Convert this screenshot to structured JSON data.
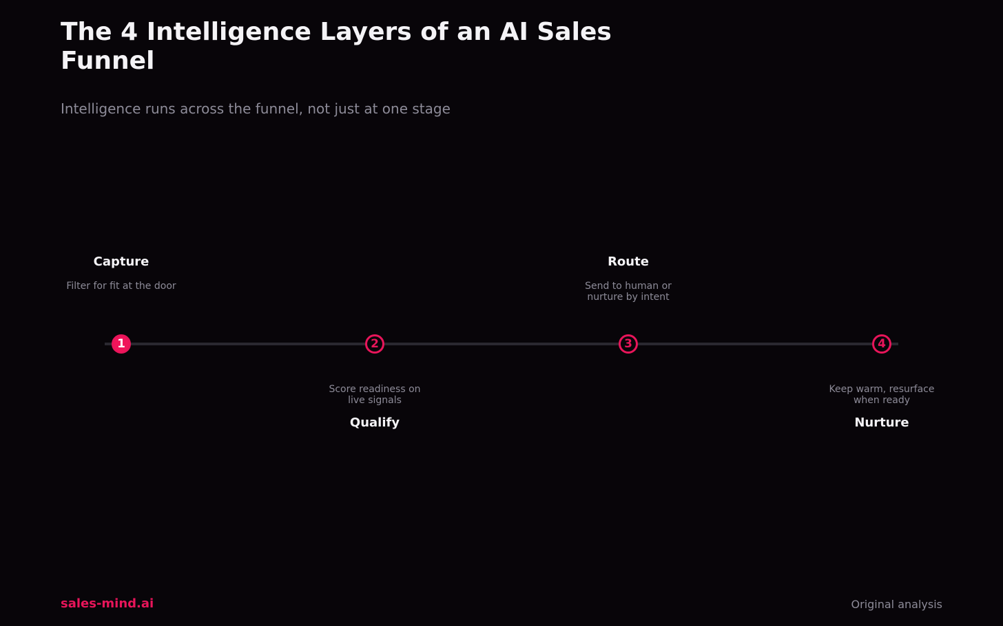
{
  "header": {
    "title": "The 4 Intelligence Layers of an AI Sales Funnel",
    "subtitle": "Intelligence runs across the funnel, not just at one stage"
  },
  "steps": [
    {
      "number": "1",
      "title": "Capture",
      "description": "Filter for fit at the door"
    },
    {
      "number": "2",
      "title": "Qualify",
      "description": "Score readiness on live signals"
    },
    {
      "number": "3",
      "title": "Route",
      "description": "Send to human or nurture by intent"
    },
    {
      "number": "4",
      "title": "Nurture",
      "description": "Keep warm, resurface when ready"
    }
  ],
  "footer": {
    "brand": "sales-mind.ai",
    "source": "Original analysis"
  }
}
